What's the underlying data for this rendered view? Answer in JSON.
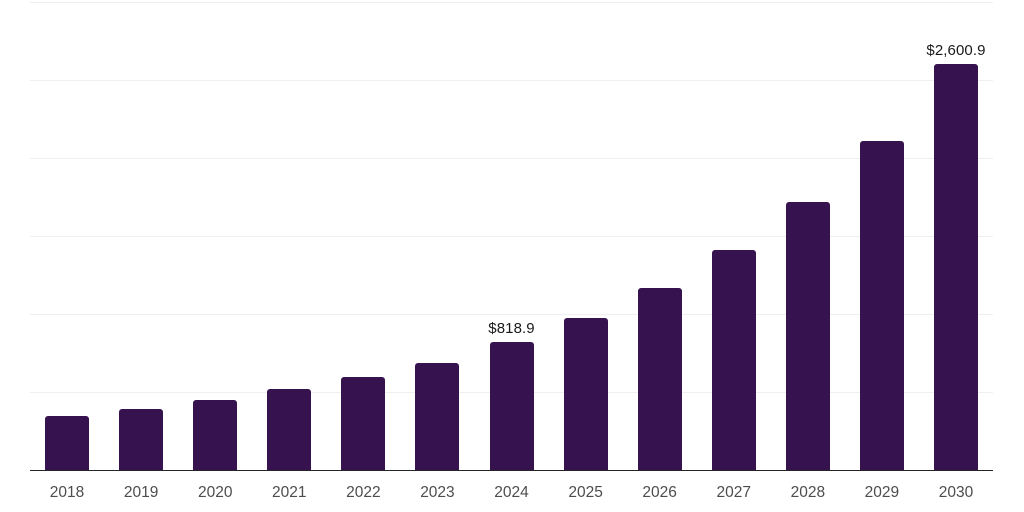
{
  "chart_data": {
    "type": "bar",
    "title": "",
    "xlabel": "",
    "ylabel": "",
    "categories": [
      "2018",
      "2019",
      "2020",
      "2021",
      "2022",
      "2023",
      "2024",
      "2025",
      "2026",
      "2027",
      "2028",
      "2029",
      "2030"
    ],
    "values": [
      346,
      389,
      449,
      517,
      594,
      688,
      818.9,
      972,
      1165,
      1410,
      1716,
      2109,
      2600.9
    ],
    "point_labels": [
      "",
      "",
      "",
      "",
      "",
      "",
      "$818.9",
      "",
      "",
      "",
      "",
      "",
      "$2,600.9"
    ],
    "ylim": [
      0,
      3000
    ],
    "grid": true,
    "gridline_values": [
      500,
      1000,
      1500,
      2000,
      2500,
      3000
    ],
    "legend": false,
    "colors": {
      "bar": "#36124E",
      "gridline": "#EFEFEF",
      "axis_line": "#262626",
      "tick_label": "#4D4D4D",
      "data_label": "#1A1A1A",
      "background": "#FFFFFF"
    }
  }
}
